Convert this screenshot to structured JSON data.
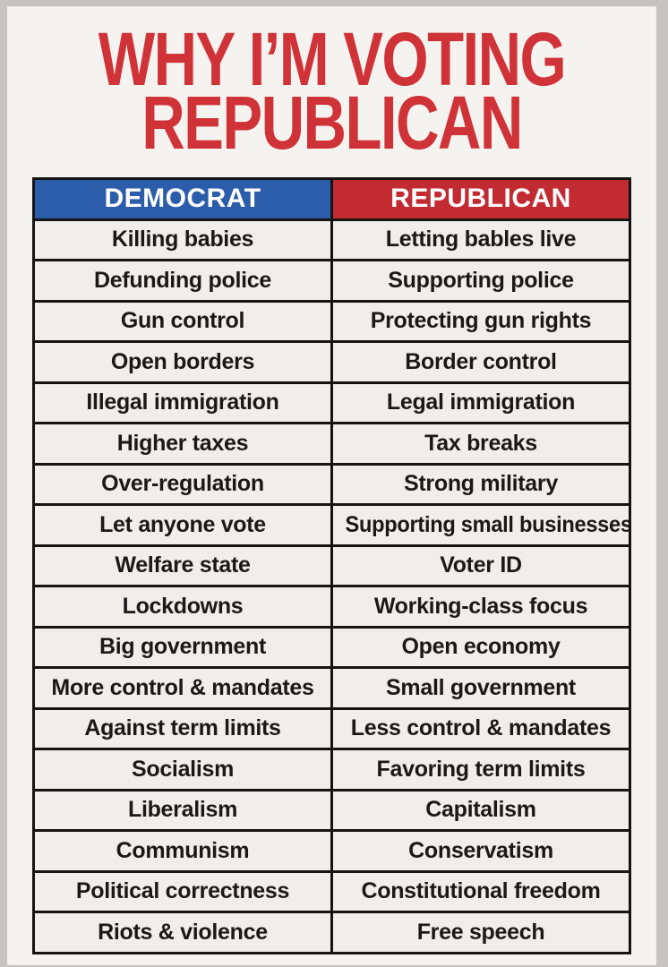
{
  "title": {
    "line1": "WHY I’M VOTING",
    "line2": "REPUBLICAN"
  },
  "colors": {
    "title_red": "#cf3338",
    "democrat_blue": "#2b5dab",
    "republican_red": "#c32b33",
    "page_bg": "#f5f3f0",
    "cell_bg": "#f0eeec",
    "frame_gray": "#c6c4c2",
    "border_black": "#161413",
    "header_text": "#ffffff",
    "cell_text": "#1b1918"
  },
  "table": {
    "headers": [
      {
        "label": "DEMOCRAT"
      },
      {
        "label": "REPUBLICAN"
      }
    ],
    "rows": [
      {
        "democrat": "Killing babies",
        "republican": "Letting bables live"
      },
      {
        "democrat": "Defunding police",
        "republican": "Supporting police"
      },
      {
        "democrat": "Gun control",
        "republican": "Protecting gun rights"
      },
      {
        "democrat": "Open borders",
        "republican": "Border control"
      },
      {
        "democrat": "Illegal immigration",
        "republican": "Legal immigration"
      },
      {
        "democrat": "Higher taxes",
        "republican": "Tax breaks"
      },
      {
        "democrat": "Over-regulation",
        "republican": "Strong military"
      },
      {
        "democrat": "Let anyone vote",
        "republican": "Supporting small businesses"
      },
      {
        "democrat": "Welfare state",
        "republican": "Voter ID"
      },
      {
        "democrat": "Lockdowns",
        "republican": "Working-class focus"
      },
      {
        "democrat": "Big government",
        "republican": "Open economy"
      },
      {
        "democrat": "More control & mandates",
        "republican": "Small government"
      },
      {
        "democrat": "Against term limits",
        "republican": "Less control & mandates"
      },
      {
        "democrat": "Socialism",
        "republican": "Favoring term limits"
      },
      {
        "democrat": "Liberalism",
        "republican": "Capitalism"
      },
      {
        "democrat": "Communism",
        "republican": "Conservatism"
      },
      {
        "democrat": "Political correctness",
        "republican": "Constitutional freedom"
      },
      {
        "democrat": "Riots & violence",
        "republican": "Free speech"
      }
    ]
  }
}
